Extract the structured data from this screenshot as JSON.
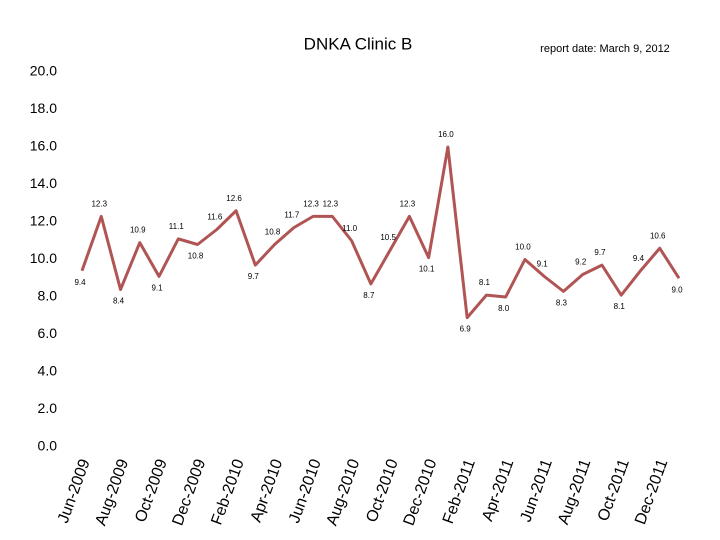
{
  "chart_data": {
    "type": "line",
    "title": "DNKA Clinic B",
    "subtitle": "report date: March 9, 2012",
    "categories": [
      "Jun-2009",
      null,
      "Aug-2009",
      null,
      "Oct-2009",
      null,
      "Dec-2009",
      null,
      "Feb-2010",
      null,
      "Apr-2010",
      null,
      "Jun-2010",
      null,
      "Aug-2010",
      null,
      "Oct-2010",
      null,
      "Dec-2010",
      null,
      "Feb-2011",
      null,
      "Apr-2011",
      null,
      "Jun-2011",
      null,
      "Aug-2011",
      null,
      "Oct-2011",
      null,
      "Dec-2011",
      null
    ],
    "series": [
      {
        "color": "#b05454",
        "values": [
          9.4,
          12.3,
          8.4,
          10.9,
          9.1,
          11.1,
          10.8,
          11.6,
          12.6,
          9.7,
          10.8,
          11.7,
          12.3,
          12.3,
          11.0,
          8.7,
          10.5,
          12.3,
          10.1,
          16.0,
          6.9,
          8.1,
          8.0,
          10.0,
          9.1,
          8.3,
          9.2,
          9.7,
          8.1,
          9.4,
          10.6,
          9.0
        ],
        "value_labels": [
          "9.4",
          "12.3",
          "8.4",
          "10.9",
          "9.1",
          "11.1",
          "10.8",
          "11.6",
          "12.6",
          "9.7",
          "10.8",
          "11.7",
          "12.3",
          "12.3",
          "11.0",
          "8.7",
          "10.5",
          "12.3",
          "10.1",
          "16.0",
          "6.9",
          "8.1",
          "8.0",
          "10.0",
          "9.1",
          "8.3",
          "9.2",
          "9.7",
          "8.1",
          "9.4",
          "10.6",
          "9.0"
        ]
      }
    ],
    "ylim": [
      0,
      20
    ],
    "yticks": [
      {
        "value": 0,
        "label": "0.0"
      },
      {
        "value": 2,
        "label": "2.0"
      },
      {
        "value": 4,
        "label": "4.0"
      },
      {
        "value": 6,
        "label": "6.0"
      },
      {
        "value": 8,
        "label": "8.0"
      },
      {
        "value": 10,
        "label": "10.0"
      },
      {
        "value": 12,
        "label": "12.0"
      },
      {
        "value": 14,
        "label": "14.0"
      },
      {
        "value": 16,
        "label": "16.0"
      },
      {
        "value": 18,
        "label": "18.0"
      },
      {
        "value": 20,
        "label": "20.0"
      }
    ],
    "grid": false
  }
}
